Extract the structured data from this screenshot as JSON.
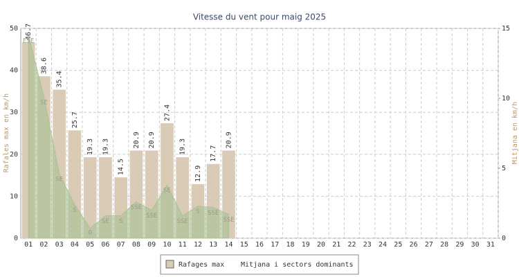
{
  "chart_data": {
    "type": "bar",
    "title": "Vitesse du vent pour maig 2025",
    "ylabel": "Rafales max en km/h",
    "y2label": "Mitjana en km/h",
    "categories": [
      "01",
      "02",
      "03",
      "04",
      "05",
      "06",
      "07",
      "08",
      "09",
      "10",
      "11",
      "12",
      "13",
      "14",
      "15",
      "16",
      "17",
      "18",
      "19",
      "20",
      "21",
      "22",
      "23",
      "24",
      "25",
      "26",
      "27",
      "28",
      "29",
      "30",
      "31"
    ],
    "series": [
      {
        "name": "Rafages max",
        "color": "#d9cbb5",
        "values": [
          46.7,
          38.6,
          35.4,
          25.7,
          19.3,
          19.3,
          14.5,
          20.9,
          20.9,
          27.4,
          19.3,
          12.9,
          17.7,
          20.9,
          null,
          null,
          null,
          null,
          null,
          null,
          null,
          null,
          null,
          null,
          null,
          null,
          null,
          null,
          null,
          null,
          null
        ]
      },
      {
        "name": "Mitjana i sectors dominants",
        "color": "#a9c294",
        "axis": "y2",
        "values": [
          14.5,
          10.1,
          4.6,
          2.4,
          0.7,
          1.6,
          1.6,
          2.6,
          2.0,
          3.8,
          1.6,
          2.3,
          2.2,
          1.7,
          null,
          null,
          null,
          null,
          null,
          null,
          null,
          null,
          null,
          null,
          null,
          null,
          null,
          null,
          null,
          null,
          null
        ],
        "labels": [
          "ESE",
          "SE",
          "SE",
          "S",
          "O",
          "SE",
          "S",
          "SSE",
          "SSE",
          "SE",
          "SSE",
          "S",
          "SSE",
          "SSE",
          null,
          null,
          null,
          null,
          null,
          null,
          null,
          null,
          null,
          null,
          null,
          null,
          null,
          null,
          null,
          null,
          null
        ]
      }
    ],
    "ylim": [
      0,
      50
    ],
    "yticks": [
      0,
      10,
      20,
      30,
      40,
      50
    ],
    "y2lim": [
      0,
      15
    ],
    "y2ticks": [
      0,
      5,
      10,
      15
    ],
    "grid": true
  }
}
